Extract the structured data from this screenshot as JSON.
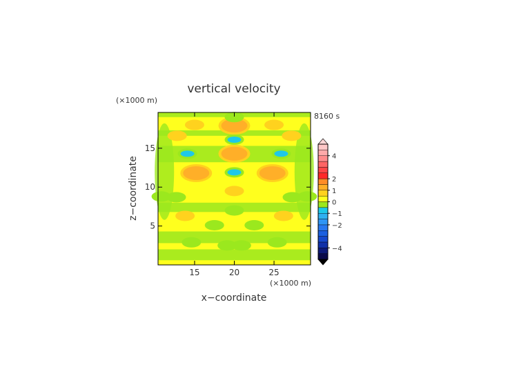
{
  "chart_data": {
    "type": "heatmap",
    "title": "vertical velocity",
    "xlabel": "x−coordinate",
    "ylabel": "z−coordinate",
    "x_unit": "(×1000 m)",
    "y_unit": "(×1000 m)",
    "time_label": "8160 s",
    "xlim": [
      10.4,
      29.6
    ],
    "ylim": [
      0,
      19.6
    ],
    "x_ticks": [
      15,
      20,
      25
    ],
    "x_tick_labels": [
      "15",
      "20",
      "25"
    ],
    "y_ticks": [
      5,
      10,
      15
    ],
    "y_tick_labels": [
      "5",
      "10",
      "15"
    ],
    "colorbar": {
      "levels": [
        -5,
        -4.5,
        -4,
        -3.5,
        -3,
        -2.5,
        -2,
        -1.5,
        -1,
        -0.5,
        0,
        0.5,
        1,
        1.5,
        2,
        2.5,
        3,
        3.5,
        4,
        4.5,
        5
      ],
      "colors": [
        "#0a0a4a",
        "#0d1a78",
        "#1030a8",
        "#1648cc",
        "#1c60e0",
        "#2878f0",
        "#2f95f5",
        "#30b0f0",
        "#1ec8e8",
        "#9be81e",
        "#ffff1e",
        "#ffd21e",
        "#ffaf28",
        "#ff8c28",
        "#ff2828",
        "#ff4646",
        "#ff6464",
        "#ff8c8c",
        "#ffaaaa",
        "#ffc8c8"
      ],
      "tick_values": [
        4,
        2,
        1,
        0,
        -1,
        -2,
        -4
      ],
      "tick_labels": [
        "4",
        "2",
        "1",
        "0",
        "−1",
        "−2",
        "−4"
      ]
    },
    "features": [
      {
        "x": 15.0,
        "z": 18.0,
        "w": 0.8
      },
      {
        "x": 25.0,
        "z": 18.0,
        "w": 0.8
      },
      {
        "x": 20.0,
        "z": 17.9,
        "w": 1.0
      },
      {
        "x": 20.0,
        "z": 19.0,
        "w": -0.4
      },
      {
        "x": 20.0,
        "z": 16.1,
        "w": -0.8
      },
      {
        "x": 12.8,
        "z": 16.6,
        "w": 0.5
      },
      {
        "x": 27.2,
        "z": 16.6,
        "w": 0.5
      },
      {
        "x": 14.1,
        "z": 14.3,
        "w": -0.8
      },
      {
        "x": 25.9,
        "z": 14.3,
        "w": -0.8
      },
      {
        "x": 20.0,
        "z": 14.3,
        "w": 1.0
      },
      {
        "x": 15.2,
        "z": 11.8,
        "w": 1.0
      },
      {
        "x": 24.8,
        "z": 11.8,
        "w": 1.0
      },
      {
        "x": 20.0,
        "z": 11.9,
        "w": -0.8
      },
      {
        "x": 20.0,
        "z": 9.5,
        "w": 0.5
      },
      {
        "x": 10.8,
        "z": 8.8,
        "w": -0.5
      },
      {
        "x": 29.2,
        "z": 8.8,
        "w": -0.5
      },
      {
        "x": 12.7,
        "z": 8.7,
        "w": -0.4
      },
      {
        "x": 27.3,
        "z": 8.7,
        "w": -0.4
      },
      {
        "x": 20.0,
        "z": 7.0,
        "w": -0.5
      },
      {
        "x": 13.8,
        "z": 6.3,
        "w": 0.5
      },
      {
        "x": 26.2,
        "z": 6.3,
        "w": 0.5
      },
      {
        "x": 17.5,
        "z": 5.1,
        "w": -0.5
      },
      {
        "x": 22.5,
        "z": 5.1,
        "w": -0.5
      },
      {
        "x": 14.6,
        "z": 2.9,
        "w": -0.4
      },
      {
        "x": 25.4,
        "z": 2.9,
        "w": -0.4
      },
      {
        "x": 19.1,
        "z": 2.5,
        "w": -0.4
      },
      {
        "x": 20.9,
        "z": 2.5,
        "w": -0.4
      }
    ]
  }
}
